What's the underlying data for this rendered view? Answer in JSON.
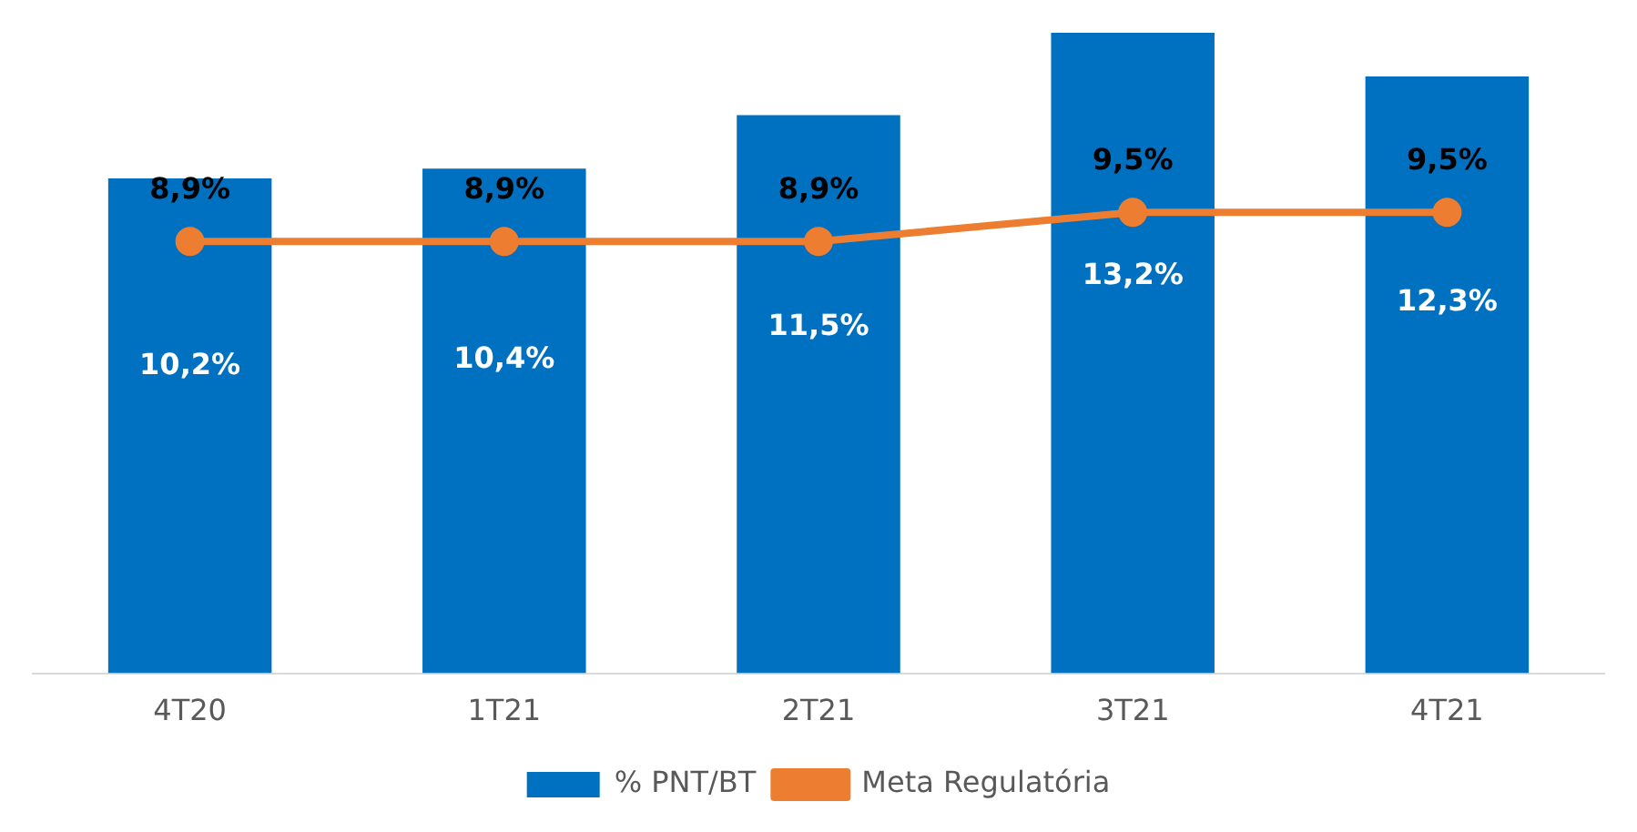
{
  "chart_data": {
    "type": "bar",
    "categories": [
      "4T20",
      "1T21",
      "2T21",
      "3T21",
      "4T21"
    ],
    "series": [
      {
        "name": "% PNT/BT",
        "color": "#0070c0",
        "values": [
          10.2,
          10.4,
          11.5,
          13.2,
          12.3
        ],
        "value_labels": [
          "10,2%",
          "10,4%",
          "11,5%",
          "13,2%",
          "12,3%"
        ]
      },
      {
        "name": "Meta Regulatória",
        "type": "line",
        "color": "#ed7d31",
        "values": [
          8.9,
          8.9,
          8.9,
          9.5,
          9.5
        ],
        "value_labels": [
          "8,9%",
          "8,9%",
          "8,9%",
          "9,5%",
          "9,5%"
        ]
      }
    ],
    "ylim": [
      0,
      13.2
    ],
    "tick_labels": "x",
    "grid": false,
    "legend": "bottom",
    "marker": "circle",
    "line_style": "solid"
  }
}
